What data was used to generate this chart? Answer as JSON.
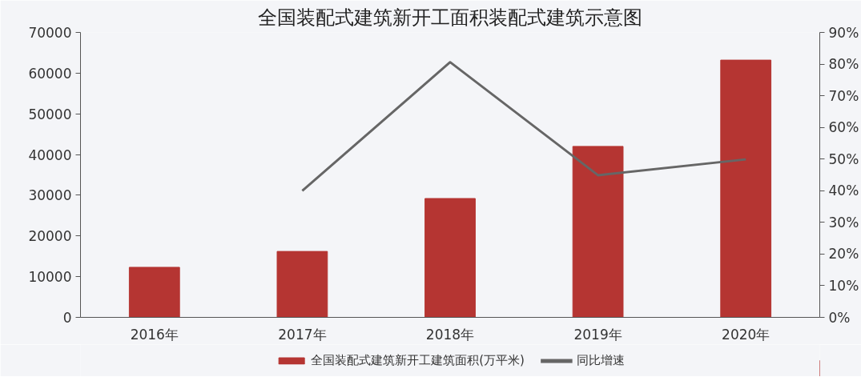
{
  "chart_data": {
    "type": "bar",
    "title": "全国装配式建筑新开工面积装配式建筑示意图",
    "categories": [
      "2016年",
      "2017年",
      "2018年",
      "2019年",
      "2020年"
    ],
    "series": [
      {
        "name": "全国装配式建筑新开工建筑面积(万平米)",
        "color": "#b53532",
        "values": [
          12300,
          16200,
          29200,
          42000,
          63200
        ]
      },
      {
        "name": "同比增速",
        "type": "line",
        "axis": "y2",
        "color": "#666666",
        "values": [
          null,
          40.0,
          80.6,
          44.9,
          49.9
        ]
      }
    ],
    "ylim": [
      0,
      70000
    ],
    "yticks": [
      0,
      10000,
      20000,
      30000,
      40000,
      50000,
      60000,
      70000
    ],
    "y2lim": [
      0,
      90
    ],
    "y2ticks": [
      {
        "value": 0,
        "label": "0%"
      },
      {
        "value": 10,
        "label": "10%"
      },
      {
        "value": 20,
        "label": "20%"
      },
      {
        "value": 30,
        "label": "30%"
      },
      {
        "value": 40,
        "label": "40%"
      },
      {
        "value": 50,
        "label": "50%"
      },
      {
        "value": 60,
        "label": "60%"
      },
      {
        "value": 70,
        "label": "70%"
      },
      {
        "value": 80,
        "label": "80%"
      },
      {
        "value": 90,
        "label": "90%"
      }
    ],
    "grid": false,
    "legend": "bottom"
  }
}
